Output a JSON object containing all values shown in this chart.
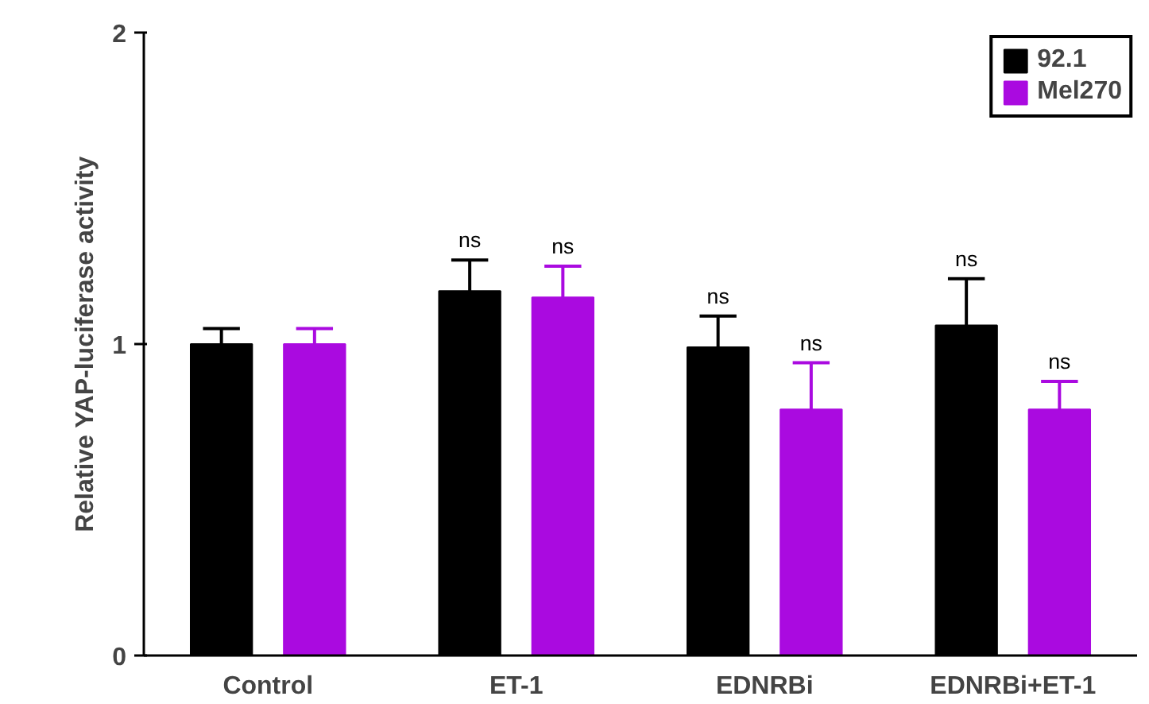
{
  "chart_data": {
    "type": "bar",
    "ylabel": "Relative YAP-luciferase activity",
    "categories": [
      "Control",
      "ET-1",
      "EDNRBi",
      "EDNRBi+ET-1"
    ],
    "series": [
      {
        "name": "92.1",
        "color": "#000000",
        "values": [
          1.0,
          1.17,
          0.99,
          1.06
        ],
        "errors": [
          [
            1.0,
            1.05
          ],
          [
            1.17,
            1.27
          ],
          [
            0.99,
            1.09
          ],
          [
            1.06,
            1.21
          ]
        ]
      },
      {
        "name": "Mel270",
        "color": "#aa0ae0",
        "values": [
          1.0,
          1.15,
          0.79,
          0.79
        ],
        "errors": [
          [
            1.0,
            1.05
          ],
          [
            1.15,
            1.25
          ],
          [
            0.79,
            0.94
          ],
          [
            0.79,
            0.88
          ]
        ]
      }
    ],
    "ylim": [
      0,
      2
    ],
    "yticks": [
      0,
      1,
      2
    ],
    "grid": false,
    "legend": "top right",
    "annotations": [
      "ns",
      "ns",
      "ns",
      "ns",
      "ns",
      "ns"
    ]
  }
}
